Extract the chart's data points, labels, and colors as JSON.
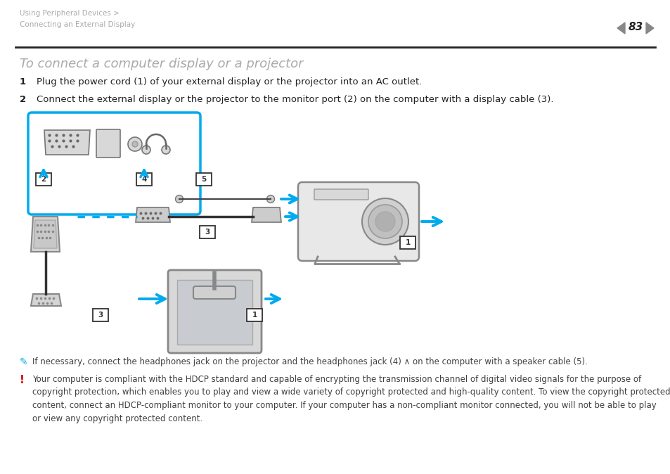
{
  "bg_color": "#ffffff",
  "header_text1": "Using Peripheral Devices >",
  "header_text2": "Connecting an External Display",
  "page_num": "83",
  "title": "To connect a computer display or a projector",
  "step1_num": "1",
  "step1": "Plug the power cord (1) of your external display or the projector into an AC outlet.",
  "step2_num": "2",
  "step2": "Connect the external display or the projector to the monitor port (2) on the computer with a display cable (3).",
  "note_text": "If necessary, connect the headphones jack on the projector and the headphones jack (4) ∧ on the computer with a speaker cable (5).",
  "warn1": "Your computer is compliant with the HDCP standard and capable of encrypting the transmission channel of digital video signals for the purpose of",
  "warn2": "copyright protection, which enables you to play and view a wide variety of copyright protected and high-quality content. To view the copyright protected",
  "warn3": "content, connect an HDCP-compliant monitor to your computer. If your computer has a non-compliant monitor connected, you will not be able to play",
  "warn4": "or view any copyright protected content.",
  "header_color": "#aaaaaa",
  "title_color": "#aaaaaa",
  "body_color": "#404040",
  "step_color": "#222222",
  "cyan": "#00aaee",
  "gray_device": "#e8e8e8",
  "gray_connector": "#cccccc",
  "gray_line": "#666666",
  "warning_red": "#cc0000"
}
